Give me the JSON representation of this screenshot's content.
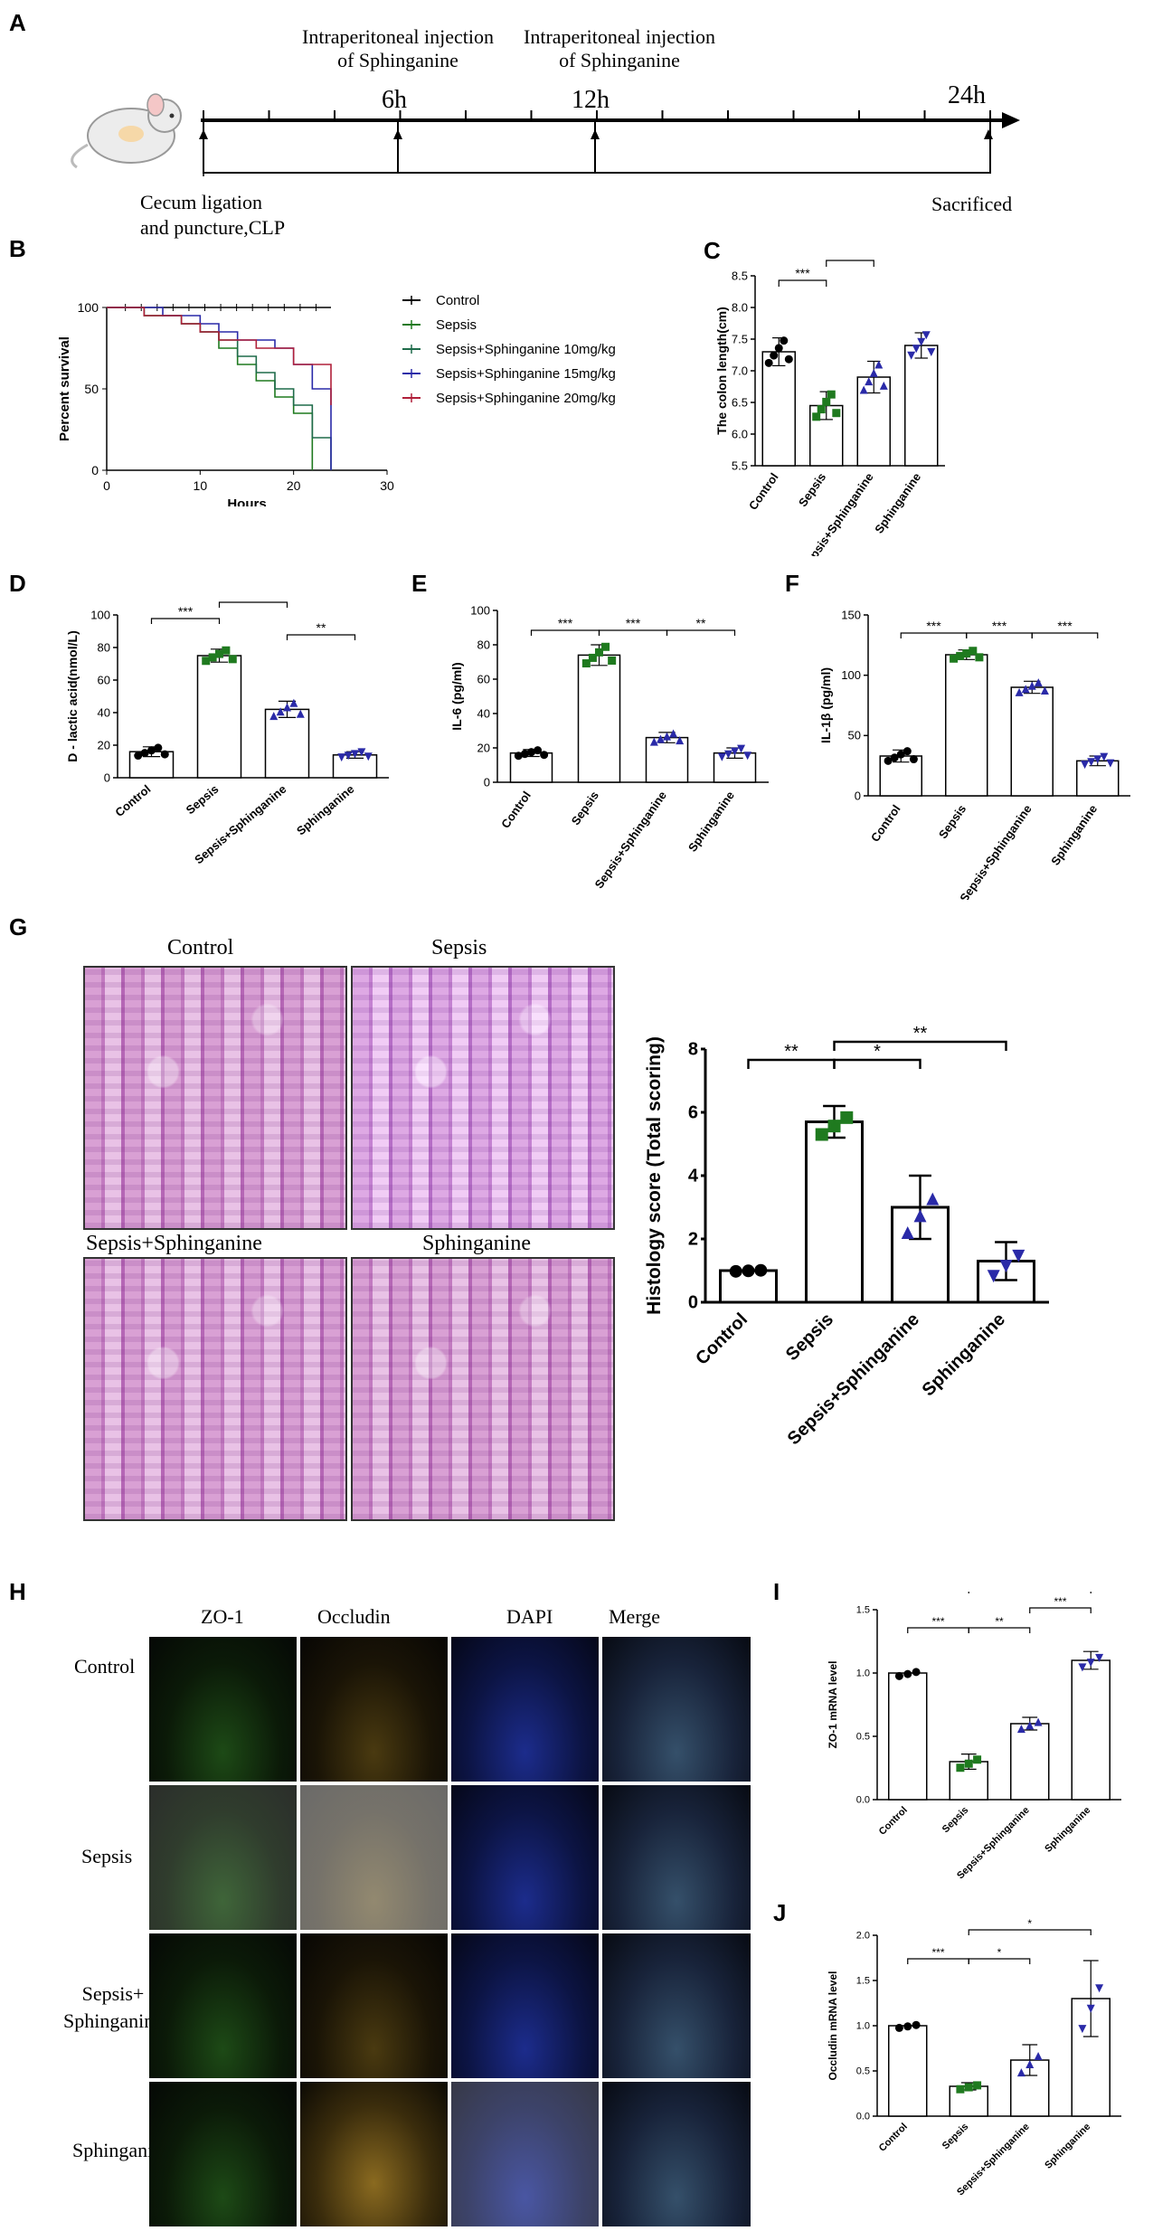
{
  "panels": {
    "A": "A",
    "B": "B",
    "C": "C",
    "D": "D",
    "E": "E",
    "F": "F",
    "G": "G",
    "H": "H",
    "I": "I",
    "J": "J"
  },
  "timeline": {
    "inj1_line1": "Intraperitoneal injection",
    "inj1_line2": "of Sphinganine",
    "inj2_line1": "Intraperitoneal injection",
    "inj2_line2": "of Sphinganine",
    "t6": "6h",
    "t12": "12h",
    "t24": "24h",
    "clp_line1": "Cecum ligation",
    "clp_line2": "and puncture,CLP",
    "sacrificed": "Sacrificed"
  },
  "survival": {
    "ylabel": "Percent survival",
    "xlabel": "Hours",
    "xticks": [
      "0",
      "10",
      "20",
      "30"
    ],
    "yticks": [
      "0",
      "50",
      "100"
    ],
    "legend": [
      {
        "name": "Control",
        "color": "#000000"
      },
      {
        "name": "Sepsis",
        "color": "#1f7a1f"
      },
      {
        "name": "Sepsis+Sphinganine 10mg/kg",
        "color": "#1f6b4a"
      },
      {
        "name": "Sepsis+Sphinganine 15mg/kg",
        "color": "#2a2aa8"
      },
      {
        "name": "Sepsis+Sphinganine 20mg/kg",
        "color": "#b0203a"
      }
    ]
  },
  "histology": {
    "control": "Control",
    "sepsis": "Sepsis",
    "sepsis_sph": "Sepsis+Sphinganine",
    "sph": "Sphinganine"
  },
  "fluor": {
    "cols": [
      "ZO-1",
      "Occludin",
      "DAPI",
      "Merge"
    ],
    "rows": [
      "Control",
      "Sepsis",
      "Sepsis+",
      "Sphinganine"
    ],
    "row3_line2": "Sphinganine"
  },
  "chart_data": [
    {
      "id": "B",
      "type": "line",
      "xlabel": "Hours",
      "ylabel": "Percent survival",
      "xlim": [
        0,
        30
      ],
      "ylim": [
        0,
        100
      ],
      "series": [
        {
          "name": "Control",
          "x": [
            0,
            24
          ],
          "y": [
            100,
            100
          ]
        },
        {
          "name": "Sepsis",
          "x": [
            0,
            4,
            8,
            10,
            12,
            14,
            16,
            18,
            20,
            22
          ],
          "y": [
            100,
            95,
            90,
            85,
            75,
            65,
            55,
            45,
            35,
            0
          ]
        },
        {
          "name": "Sepsis+Sphinganine 10mg/kg",
          "x": [
            0,
            4,
            8,
            10,
            12,
            14,
            16,
            18,
            20,
            22,
            24
          ],
          "y": [
            100,
            95,
            90,
            85,
            80,
            70,
            60,
            50,
            40,
            20,
            0
          ]
        },
        {
          "name": "Sepsis+Sphinganine 15mg/kg",
          "x": [
            0,
            6,
            10,
            12,
            14,
            18,
            20,
            22,
            24
          ],
          "y": [
            100,
            95,
            90,
            85,
            80,
            75,
            65,
            50,
            0
          ]
        },
        {
          "name": "Sepsis+Sphinganine 20mg/kg",
          "x": [
            0,
            4,
            8,
            10,
            12,
            16,
            20,
            24
          ],
          "y": [
            100,
            95,
            90,
            85,
            80,
            75,
            65,
            40
          ]
        }
      ]
    },
    {
      "id": "C",
      "type": "bar",
      "ylabel": "The colon length(cm)",
      "ylim": [
        5.5,
        8.5
      ],
      "yticks": [
        "5.5",
        "6.0",
        "6.5",
        "7.0",
        "7.5",
        "8.0",
        "8.5"
      ],
      "categories": [
        "Control",
        "Sepsis",
        "Sepsis+Sphinganine",
        "Sphinganine"
      ],
      "values": [
        7.3,
        6.45,
        6.9,
        7.4
      ],
      "errors": [
        0.22,
        0.22,
        0.25,
        0.2
      ],
      "colors": [
        "#000000",
        "#1f7a1f",
        "#2a2aa8",
        "#2a2aa8"
      ],
      "sig": [
        {
          "a": 0,
          "b": 1,
          "t": "***",
          "level": 1
        },
        {
          "a": 1,
          "b": 2,
          "t": "*",
          "level": 2
        },
        {
          "a": 1,
          "b": 3,
          "t": "***",
          "level": 3
        }
      ]
    },
    {
      "id": "D",
      "type": "bar",
      "ylabel": "D - lactic acid(nmol/L)",
      "ylim": [
        0,
        100
      ],
      "yticks": [
        "0",
        "20",
        "40",
        "60",
        "80",
        "100"
      ],
      "categories": [
        "Control",
        "Sepsis",
        "Sepsis+Sphinganine",
        "Sphinganine"
      ],
      "values": [
        16,
        75,
        42,
        14
      ],
      "errors": [
        3,
        4,
        5,
        2
      ],
      "colors": [
        "#000000",
        "#1f7a1f",
        "#2a2aa8",
        "#2a2aa8"
      ],
      "sig": [
        {
          "a": 0,
          "b": 1,
          "t": "***",
          "level": 1
        },
        {
          "a": 1,
          "b": 2,
          "t": "***",
          "level": 2
        },
        {
          "a": 2,
          "b": 3,
          "t": "**",
          "level": 0
        },
        {
          "a": 1,
          "b": 3,
          "t": "***",
          "level": 3
        }
      ]
    },
    {
      "id": "E",
      "type": "bar",
      "ylabel": "IL-6 (pg/ml)",
      "ylim": [
        0,
        100
      ],
      "yticks": [
        "0",
        "20",
        "40",
        "60",
        "80",
        "100"
      ],
      "categories": [
        "Control",
        "Sepsis",
        "Sepsis+Sphinganine",
        "Sphinganine"
      ],
      "values": [
        17,
        74,
        26,
        17
      ],
      "errors": [
        2,
        6,
        3,
        3
      ],
      "colors": [
        "#000000",
        "#1f7a1f",
        "#2a2aa8",
        "#2a2aa8"
      ],
      "sig": [
        {
          "a": 0,
          "b": 1,
          "t": "***",
          "level": 1
        },
        {
          "a": 1,
          "b": 2,
          "t": "***",
          "level": 1
        },
        {
          "a": 2,
          "b": 3,
          "t": "**",
          "level": 0
        }
      ]
    },
    {
      "id": "F",
      "type": "bar",
      "ylabel": "IL-1β (pg/ml)",
      "ylim": [
        0,
        150
      ],
      "yticks": [
        "0",
        "50",
        "100",
        "150"
      ],
      "categories": [
        "Control",
        "Sepsis",
        "Sepsis+Sphinganine",
        "Sphinganine"
      ],
      "values": [
        33,
        117,
        90,
        29
      ],
      "errors": [
        5,
        4,
        5,
        4
      ],
      "colors": [
        "#000000",
        "#1f7a1f",
        "#2a2aa8",
        "#2a2aa8"
      ],
      "sig": [
        {
          "a": 0,
          "b": 1,
          "t": "***",
          "level": 1
        },
        {
          "a": 1,
          "b": 2,
          "t": "***",
          "level": 1
        },
        {
          "a": 2,
          "b": 3,
          "t": "***",
          "level": 0
        }
      ]
    },
    {
      "id": "G",
      "type": "bar",
      "ylabel": "Histology score (Total scoring)",
      "ylim": [
        0,
        8
      ],
      "yticks": [
        "0",
        "2",
        "4",
        "6",
        "8"
      ],
      "categories": [
        "Control",
        "Sepsis",
        "Sepsis+Sphinganine",
        "Sphinganine"
      ],
      "values": [
        1,
        5.7,
        3.0,
        1.3
      ],
      "errors": [
        0,
        0.5,
        1.0,
        0.6
      ],
      "colors": [
        "#000000",
        "#1f7a1f",
        "#2a2aa8",
        "#2a2aa8"
      ],
      "sig": [
        {
          "a": 0,
          "b": 1,
          "t": "**",
          "level": 1
        },
        {
          "a": 1,
          "b": 2,
          "t": "*",
          "level": 1
        },
        {
          "a": 1,
          "b": 3,
          "t": "**",
          "level": 2
        }
      ]
    },
    {
      "id": "I",
      "type": "bar",
      "ylabel": "ZO-1 mRNA level",
      "ylim": [
        0,
        1.5
      ],
      "yticks": [
        "0.0",
        "0.5",
        "1.0",
        "1.5"
      ],
      "categories": [
        "Control",
        "Sepsis",
        "Sepsis+Sphinganine",
        "Sphinganine"
      ],
      "values": [
        1.0,
        0.3,
        0.6,
        1.1
      ],
      "errors": [
        0,
        0.06,
        0.05,
        0.07
      ],
      "colors": [
        "#000000",
        "#1f7a1f",
        "#2a2aa8",
        "#2a2aa8"
      ],
      "sig": [
        {
          "a": 0,
          "b": 1,
          "t": "***",
          "level": 1
        },
        {
          "a": 1,
          "b": 2,
          "t": "**",
          "level": 1
        },
        {
          "a": 2,
          "b": 3,
          "t": "***",
          "level": 2
        },
        {
          "a": 1,
          "b": 3,
          "t": "***",
          "level": 3
        }
      ]
    },
    {
      "id": "J",
      "type": "bar",
      "ylabel": "Occludin mRNA level",
      "ylim": [
        0,
        2.0
      ],
      "yticks": [
        "0.0",
        "0.5",
        "1.0",
        "1.5",
        "2.0"
      ],
      "categories": [
        "Control",
        "Sepsis",
        "Sepsis+Sphinganine",
        "Sphinganine"
      ],
      "values": [
        1.0,
        0.33,
        0.62,
        1.3
      ],
      "errors": [
        0,
        0.04,
        0.17,
        0.42
      ],
      "colors": [
        "#000000",
        "#1f7a1f",
        "#2a2aa8",
        "#2a2aa8"
      ],
      "sig": [
        {
          "a": 0,
          "b": 1,
          "t": "***",
          "level": 1
        },
        {
          "a": 1,
          "b": 2,
          "t": "*",
          "level": 1
        },
        {
          "a": 1,
          "b": 3,
          "t": "*",
          "level": 3
        }
      ]
    }
  ]
}
